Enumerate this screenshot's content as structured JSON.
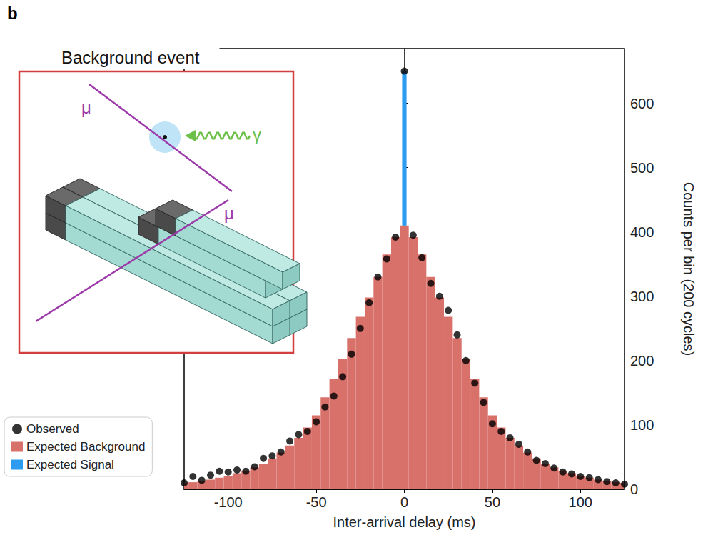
{
  "chart_data": {
    "type": "bar",
    "x_label": "Inter-arrival delay (ms)",
    "y_label": "Counts per bin (200 cycles)",
    "annotations": {
      "panel": "b",
      "inset_title": "Background event",
      "muon": "μ",
      "photon": "γ"
    },
    "x": [
      -125,
      -120,
      -115,
      -110,
      -105,
      -100,
      -95,
      -90,
      -85,
      -80,
      -75,
      -70,
      -65,
      -60,
      -55,
      -50,
      -45,
      -40,
      -35,
      -30,
      -25,
      -20,
      -15,
      -10,
      -5,
      0,
      5,
      10,
      15,
      20,
      25,
      30,
      35,
      40,
      45,
      50,
      55,
      60,
      65,
      70,
      75,
      80,
      85,
      90,
      95,
      100,
      105,
      110,
      115,
      120,
      125
    ],
    "stacked": true,
    "legend": "lower left",
    "series": [
      {
        "name": "Observed",
        "type": "scatter",
        "marker": "circle",
        "color": "#000000",
        "values": [
          10,
          20,
          14,
          22,
          28,
          27,
          30,
          28,
          35,
          48,
          52,
          58,
          75,
          85,
          90,
          105,
          128,
          145,
          175,
          210,
          250,
          290,
          330,
          358,
          392,
          650,
          395,
          360,
          320,
          300,
          278,
          240,
          200,
          165,
          135,
          102,
          90,
          80,
          70,
          58,
          45,
          40,
          33,
          27,
          24,
          20,
          18,
          15,
          12,
          10,
          8
        ]
      },
      {
        "name": "Expected Background",
        "type": "bar",
        "color": "#d9716b",
        "values": [
          10,
          11,
          13,
          15,
          18,
          21,
          25,
          29,
          34,
          40,
          48,
          57,
          68,
          80,
          96,
          115,
          143,
          172,
          203,
          235,
          268,
          298,
          330,
          365,
          392,
          410,
          392,
          365,
          330,
          298,
          268,
          235,
          203,
          172,
          143,
          115,
          96,
          80,
          68,
          57,
          48,
          40,
          34,
          29,
          25,
          21,
          18,
          15,
          13,
          11,
          10
        ]
      },
      {
        "name": "Expected Signal",
        "type": "bar",
        "color": "#2d9cf0",
        "values": [
          null,
          null,
          null,
          null,
          null,
          null,
          null,
          null,
          null,
          null,
          null,
          null,
          null,
          null,
          null,
          null,
          null,
          null,
          null,
          null,
          null,
          null,
          null,
          null,
          null,
          240,
          null,
          null,
          null,
          null,
          null,
          null,
          null,
          null,
          null,
          null,
          null,
          null,
          null,
          null,
          null,
          null,
          null,
          null,
          null,
          null,
          null,
          null,
          null,
          null,
          null
        ]
      }
    ],
    "xlim": [
      -125,
      125
    ],
    "xticks": [
      -100,
      -50,
      0,
      50,
      100
    ],
    "ylim": [
      0,
      685
    ],
    "yticks": [
      0,
      100,
      200,
      300,
      400,
      500,
      600
    ],
    "grid": false
  }
}
